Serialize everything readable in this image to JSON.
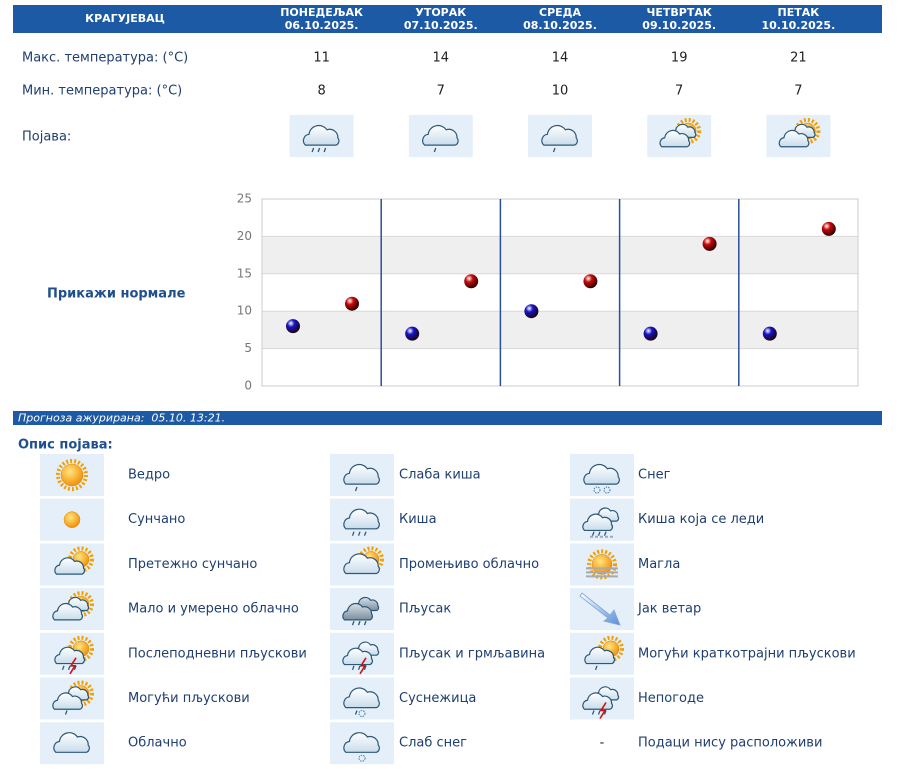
{
  "header": {
    "city": "КРАГУЈЕВАЦ",
    "days": [
      {
        "name": "ПОНЕДЕЉАК",
        "date": "06.10.2025."
      },
      {
        "name": "УТОРАК",
        "date": "07.10.2025."
      },
      {
        "name": "СРЕДА",
        "date": "08.10.2025."
      },
      {
        "name": "ЧЕТВРТАК",
        "date": "09.10.2025."
      },
      {
        "name": "ПЕТАК",
        "date": "10.10.2025."
      }
    ]
  },
  "rows": {
    "max_label": "Макс. температура: (°C)",
    "min_label": "Мин. температура: (°C)",
    "icon_label": "Појава:"
  },
  "normals_link": "Прикажи нормале",
  "chart_data": {
    "type": "scatter",
    "series": [
      {
        "color": "#1414c8",
        "values": [
          8,
          7,
          10,
          7,
          7
        ]
      },
      {
        "color": "#c80a0a",
        "values": [
          11,
          14,
          14,
          19,
          21
        ]
      }
    ],
    "ylim": [
      0,
      25
    ],
    "yticks": [
      0,
      5,
      10,
      15,
      20,
      25
    ],
    "grid": true
  },
  "updated": "Прогноза ажурирана:  05.10. 13:21.",
  "legend": {
    "title": "Опис појава:",
    "items": [
      {
        "label": "Ведро"
      },
      {
        "label": "Сунчано"
      },
      {
        "label": "Претежно сунчано"
      },
      {
        "label": "Мало и умерено облачно"
      },
      {
        "label": "Послеподневни пљускови"
      },
      {
        "label": "Могући пљускови"
      },
      {
        "label": "Облачно"
      },
      {
        "label": "Слаба киша"
      },
      {
        "label": "Киша"
      },
      {
        "label": "Промењиво облачно"
      },
      {
        "label": "Пљусак"
      },
      {
        "label": "Пљусак и грмљавина"
      },
      {
        "label": "Суснежица"
      },
      {
        "label": "Слаб снег"
      },
      {
        "label": "Снег"
      },
      {
        "label": "Киша која се леди"
      },
      {
        "label": "Магла"
      },
      {
        "label": "Јак ветар"
      },
      {
        "label": "Могући краткотрајни пљускови"
      },
      {
        "label": "Непогоде"
      },
      {
        "symbol": "-",
        "label": "Подаци нису расположиви"
      }
    ]
  }
}
